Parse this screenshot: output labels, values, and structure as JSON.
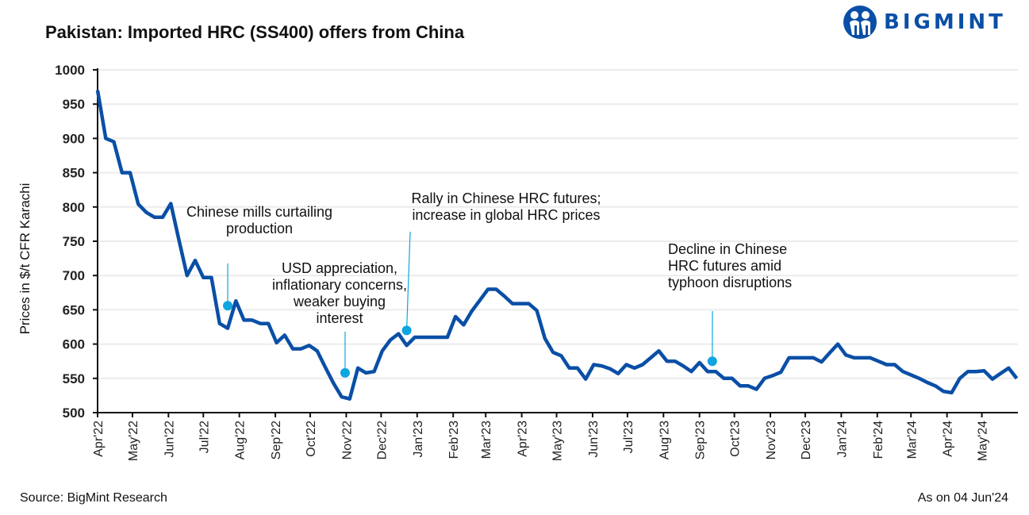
{
  "title": "Pakistan: Imported HRC (SS400) offers from China",
  "logo": {
    "text": "BIGMINT",
    "color": "#0a4fa6"
  },
  "source": "Source: BigMint Research",
  "as_on": "As on 04 Jun'24",
  "colors": {
    "line": "#0a4fa6",
    "marker": "#0ea5e0",
    "grid": "#ececec",
    "axis": "#111111"
  },
  "chart_data": {
    "type": "line",
    "title": "Pakistan: Imported HRC (SS400) offers from China",
    "xlabel": "",
    "ylabel": "Prices in $/t CFR Karachi",
    "ylim": [
      500,
      1000
    ],
    "xlim": [
      "2022-04-01",
      "2024-06-01"
    ],
    "grid": true,
    "yticks": [
      "500",
      "550",
      "600",
      "650",
      "700",
      "750",
      "800",
      "850",
      "900",
      "950",
      "1000"
    ],
    "xticks": [
      {
        "date": "2022-04-01",
        "label": "Apr'22"
      },
      {
        "date": "2022-05-01",
        "label": "May'22"
      },
      {
        "date": "2022-06-01",
        "label": "Jun'22"
      },
      {
        "date": "2022-07-01",
        "label": "Jul'22"
      },
      {
        "date": "2022-08-01",
        "label": "Aug'22"
      },
      {
        "date": "2022-09-01",
        "label": "Sep'22"
      },
      {
        "date": "2022-10-01",
        "label": "Oct'22"
      },
      {
        "date": "2022-11-01",
        "label": "Nov'22"
      },
      {
        "date": "2022-12-01",
        "label": "Dec'22"
      },
      {
        "date": "2023-01-01",
        "label": "Jan'23"
      },
      {
        "date": "2023-02-01",
        "label": "Feb'23"
      },
      {
        "date": "2023-03-01",
        "label": "Mar'23"
      },
      {
        "date": "2023-04-01",
        "label": "Apr'23"
      },
      {
        "date": "2023-05-01",
        "label": "May'23"
      },
      {
        "date": "2023-06-01",
        "label": "Jun'23"
      },
      {
        "date": "2023-07-01",
        "label": "Jul'23"
      },
      {
        "date": "2023-08-01",
        "label": "Aug'23"
      },
      {
        "date": "2023-09-01",
        "label": "Sep'23"
      },
      {
        "date": "2023-10-01",
        "label": "Oct'23"
      },
      {
        "date": "2023-11-01",
        "label": "Nov'23"
      },
      {
        "date": "2023-12-01",
        "label": "Dec'23"
      },
      {
        "date": "2024-01-01",
        "label": "Jan'24"
      },
      {
        "date": "2024-02-01",
        "label": "Feb'24"
      },
      {
        "date": "2024-03-01",
        "label": "Mar'24"
      },
      {
        "date": "2024-04-01",
        "label": "Apr'24"
      },
      {
        "date": "2024-05-01",
        "label": "May'24"
      }
    ],
    "series": [
      {
        "x": [
          "2022-04-01",
          "2022-04-08",
          "2022-04-15",
          "2022-04-22",
          "2022-04-29",
          "2022-05-06",
          "2022-05-13",
          "2022-05-20",
          "2022-05-27",
          "2022-06-03",
          "2022-06-10",
          "2022-06-17",
          "2022-06-24",
          "2022-07-01",
          "2022-07-08",
          "2022-07-15",
          "2022-07-22",
          "2022-07-29",
          "2022-08-05",
          "2022-08-12",
          "2022-08-19",
          "2022-08-26",
          "2022-09-02",
          "2022-09-09",
          "2022-09-16",
          "2022-09-23",
          "2022-09-30",
          "2022-10-07",
          "2022-10-14",
          "2022-10-21",
          "2022-10-28",
          "2022-11-04",
          "2022-11-11",
          "2022-11-18",
          "2022-11-25",
          "2022-12-02",
          "2022-12-09",
          "2022-12-16",
          "2022-12-23",
          "2022-12-30",
          "2023-01-06",
          "2023-01-13",
          "2023-01-20",
          "2023-01-27",
          "2023-02-03",
          "2023-02-10",
          "2023-02-17",
          "2023-02-24",
          "2023-03-03",
          "2023-03-10",
          "2023-03-17",
          "2023-03-24",
          "2023-03-31",
          "2023-04-07",
          "2023-04-14",
          "2023-04-21",
          "2023-04-28",
          "2023-05-05",
          "2023-05-12",
          "2023-05-19",
          "2023-05-26",
          "2023-06-02",
          "2023-06-09",
          "2023-06-16",
          "2023-06-23",
          "2023-06-30",
          "2023-07-07",
          "2023-07-14",
          "2023-07-21",
          "2023-07-28",
          "2023-08-04",
          "2023-08-11",
          "2023-08-18",
          "2023-08-25",
          "2023-09-01",
          "2023-09-08",
          "2023-09-15",
          "2023-09-22",
          "2023-09-29",
          "2023-10-06",
          "2023-10-13",
          "2023-10-20",
          "2023-10-27",
          "2023-11-03",
          "2023-11-10",
          "2023-11-17",
          "2023-11-24",
          "2023-12-01",
          "2023-12-08",
          "2023-12-15",
          "2023-12-22",
          "2023-12-29",
          "2024-01-05",
          "2024-01-12",
          "2024-01-19",
          "2024-01-26",
          "2024-02-02",
          "2024-02-09",
          "2024-02-16",
          "2024-02-23",
          "2024-03-01",
          "2024-03-08",
          "2024-03-15",
          "2024-03-22",
          "2024-03-29",
          "2024-04-05",
          "2024-04-12",
          "2024-04-19",
          "2024-04-26",
          "2024-05-03",
          "2024-05-10",
          "2024-05-17",
          "2024-05-24",
          "2024-05-31"
        ],
        "values": [
          970,
          900,
          895,
          850,
          850,
          804,
          792,
          785,
          785,
          805,
          752,
          700,
          722,
          697,
          697,
          630,
          623,
          663,
          635,
          635,
          630,
          630,
          602,
          613,
          593,
          593,
          598,
          590,
          566,
          543,
          523,
          520,
          565,
          558,
          560,
          590,
          606,
          615,
          598,
          610,
          610,
          610,
          610,
          610,
          640,
          628,
          648,
          664,
          680,
          680,
          670,
          659,
          659,
          659,
          649,
          608,
          588,
          583,
          565,
          565,
          549,
          570,
          568,
          564,
          557,
          570,
          565,
          570,
          580,
          590,
          575,
          575,
          568,
          560,
          573,
          560,
          560,
          550,
          550,
          539,
          539,
          534,
          550,
          554,
          559,
          580,
          580,
          580,
          580,
          574,
          587,
          600,
          584,
          580,
          580,
          580,
          575,
          570,
          570,
          560,
          555,
          550,
          544,
          539,
          531,
          529,
          550,
          560,
          560,
          561,
          549,
          557,
          565,
          550
        ]
      }
    ],
    "annotations": [
      {
        "lines": [
          "Chinese mills curtailing",
          "production"
        ],
        "date": "2022-07-22",
        "value": 656
      },
      {
        "lines": [
          "USD appreciation,",
          "inflationary concerns,",
          "weaker buying",
          "interest"
        ],
        "date": "2022-10-31",
        "value": 558
      },
      {
        "lines": [
          "Rally in Chinese HRC futures;",
          "increase in global HRC prices"
        ],
        "date": "2022-12-23",
        "value": 620
      },
      {
        "lines": [
          "Decline in Chinese",
          "HRC futures amid",
          "typhoon disruptions"
        ],
        "date": "2023-09-12",
        "value": 575
      }
    ]
  }
}
